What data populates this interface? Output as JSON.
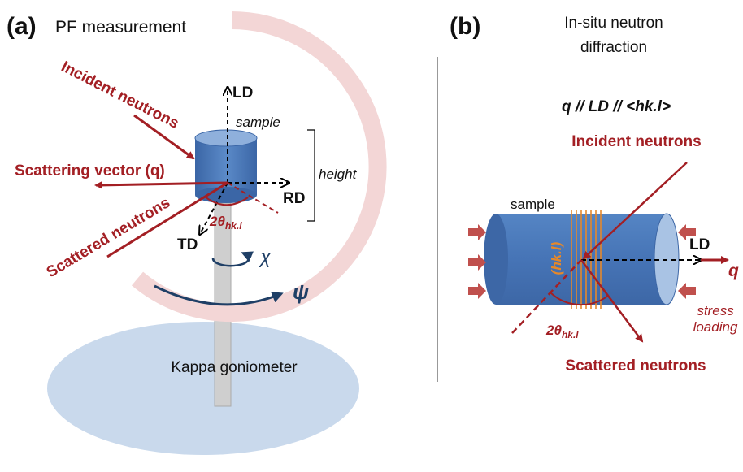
{
  "panel_a": {
    "label": "(a)",
    "title": "PF measurement",
    "labels": {
      "incident": "Incident neutrons",
      "scattering_vector": "Scattering vector (q)",
      "scattered": "Scattered neutrons",
      "ld": "LD",
      "sample": "sample",
      "height": "height",
      "rd": "RD",
      "td": "TD",
      "angle": {
        "main": "2θ",
        "sub": "hk.l"
      },
      "chi": "χ",
      "psi": "ψ",
      "goniometer": "Kappa goniometer"
    }
  },
  "panel_b": {
    "label": "(b)",
    "title": [
      "In-situ neutron",
      "diffraction"
    ],
    "relation": "q // LD // <hk.l>",
    "labels": {
      "incident": "Incident neutrons",
      "sample": "sample",
      "plane": "(hk.l)",
      "ld": "LD",
      "q": "q",
      "stress": [
        "stress",
        "loading"
      ],
      "angle": {
        "main": "2θ",
        "sub": "hk.l"
      },
      "scattered": "Scattered neutrons"
    }
  }
}
